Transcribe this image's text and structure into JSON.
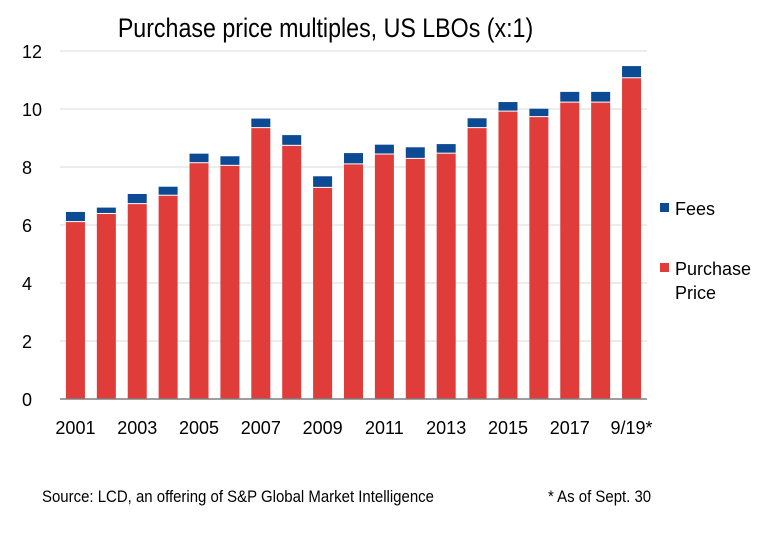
{
  "chart_data": {
    "type": "bar",
    "stacked": true,
    "title": "Purchase price multiples, US LBOs (x:1)",
    "xlabel": "",
    "ylabel": "",
    "ylim": [
      0,
      12
    ],
    "yticks": [
      0,
      2,
      4,
      6,
      8,
      10,
      12
    ],
    "grid": true,
    "legend_position": "right",
    "categories": [
      "2001",
      "2002",
      "2003",
      "2004",
      "2005",
      "2006",
      "2007",
      "2008",
      "2009",
      "2010",
      "2011",
      "2012",
      "2013",
      "2014",
      "2015",
      "2016",
      "2017",
      "2018",
      "9/19*"
    ],
    "x_tick_labels": [
      "2001",
      "2003",
      "2005",
      "2007",
      "2009",
      "2011",
      "2013",
      "2015",
      "2017",
      "9/19*"
    ],
    "series": [
      {
        "name": "Purchase Price",
        "color": "#e03c3a",
        "values": [
          6.1,
          6.38,
          6.72,
          7.01,
          8.13,
          8.04,
          9.34,
          8.73,
          7.28,
          8.09,
          8.43,
          8.28,
          8.46,
          9.34,
          9.91,
          9.72,
          10.22,
          10.22,
          11.06
        ]
      },
      {
        "name": "Fees",
        "color": "#0d4a94",
        "values": [
          0.35,
          0.22,
          0.35,
          0.31,
          0.33,
          0.33,
          0.33,
          0.37,
          0.4,
          0.39,
          0.34,
          0.4,
          0.33,
          0.34,
          0.33,
          0.29,
          0.37,
          0.37,
          0.42
        ]
      }
    ],
    "legend": [
      {
        "label_lines": [
          "Fees"
        ],
        "color": "#0d4a94"
      },
      {
        "label_lines": [
          "Purchase",
          "Price"
        ],
        "color": "#e03c3a"
      }
    ]
  },
  "footnotes": {
    "source": "Source:  LCD, an offering of S&P Global Market Intelligence",
    "asterisk": "* As of Sept. 30"
  },
  "colors": {
    "gridline": "#d9d9d9",
    "axis": "#7f7f7f"
  }
}
